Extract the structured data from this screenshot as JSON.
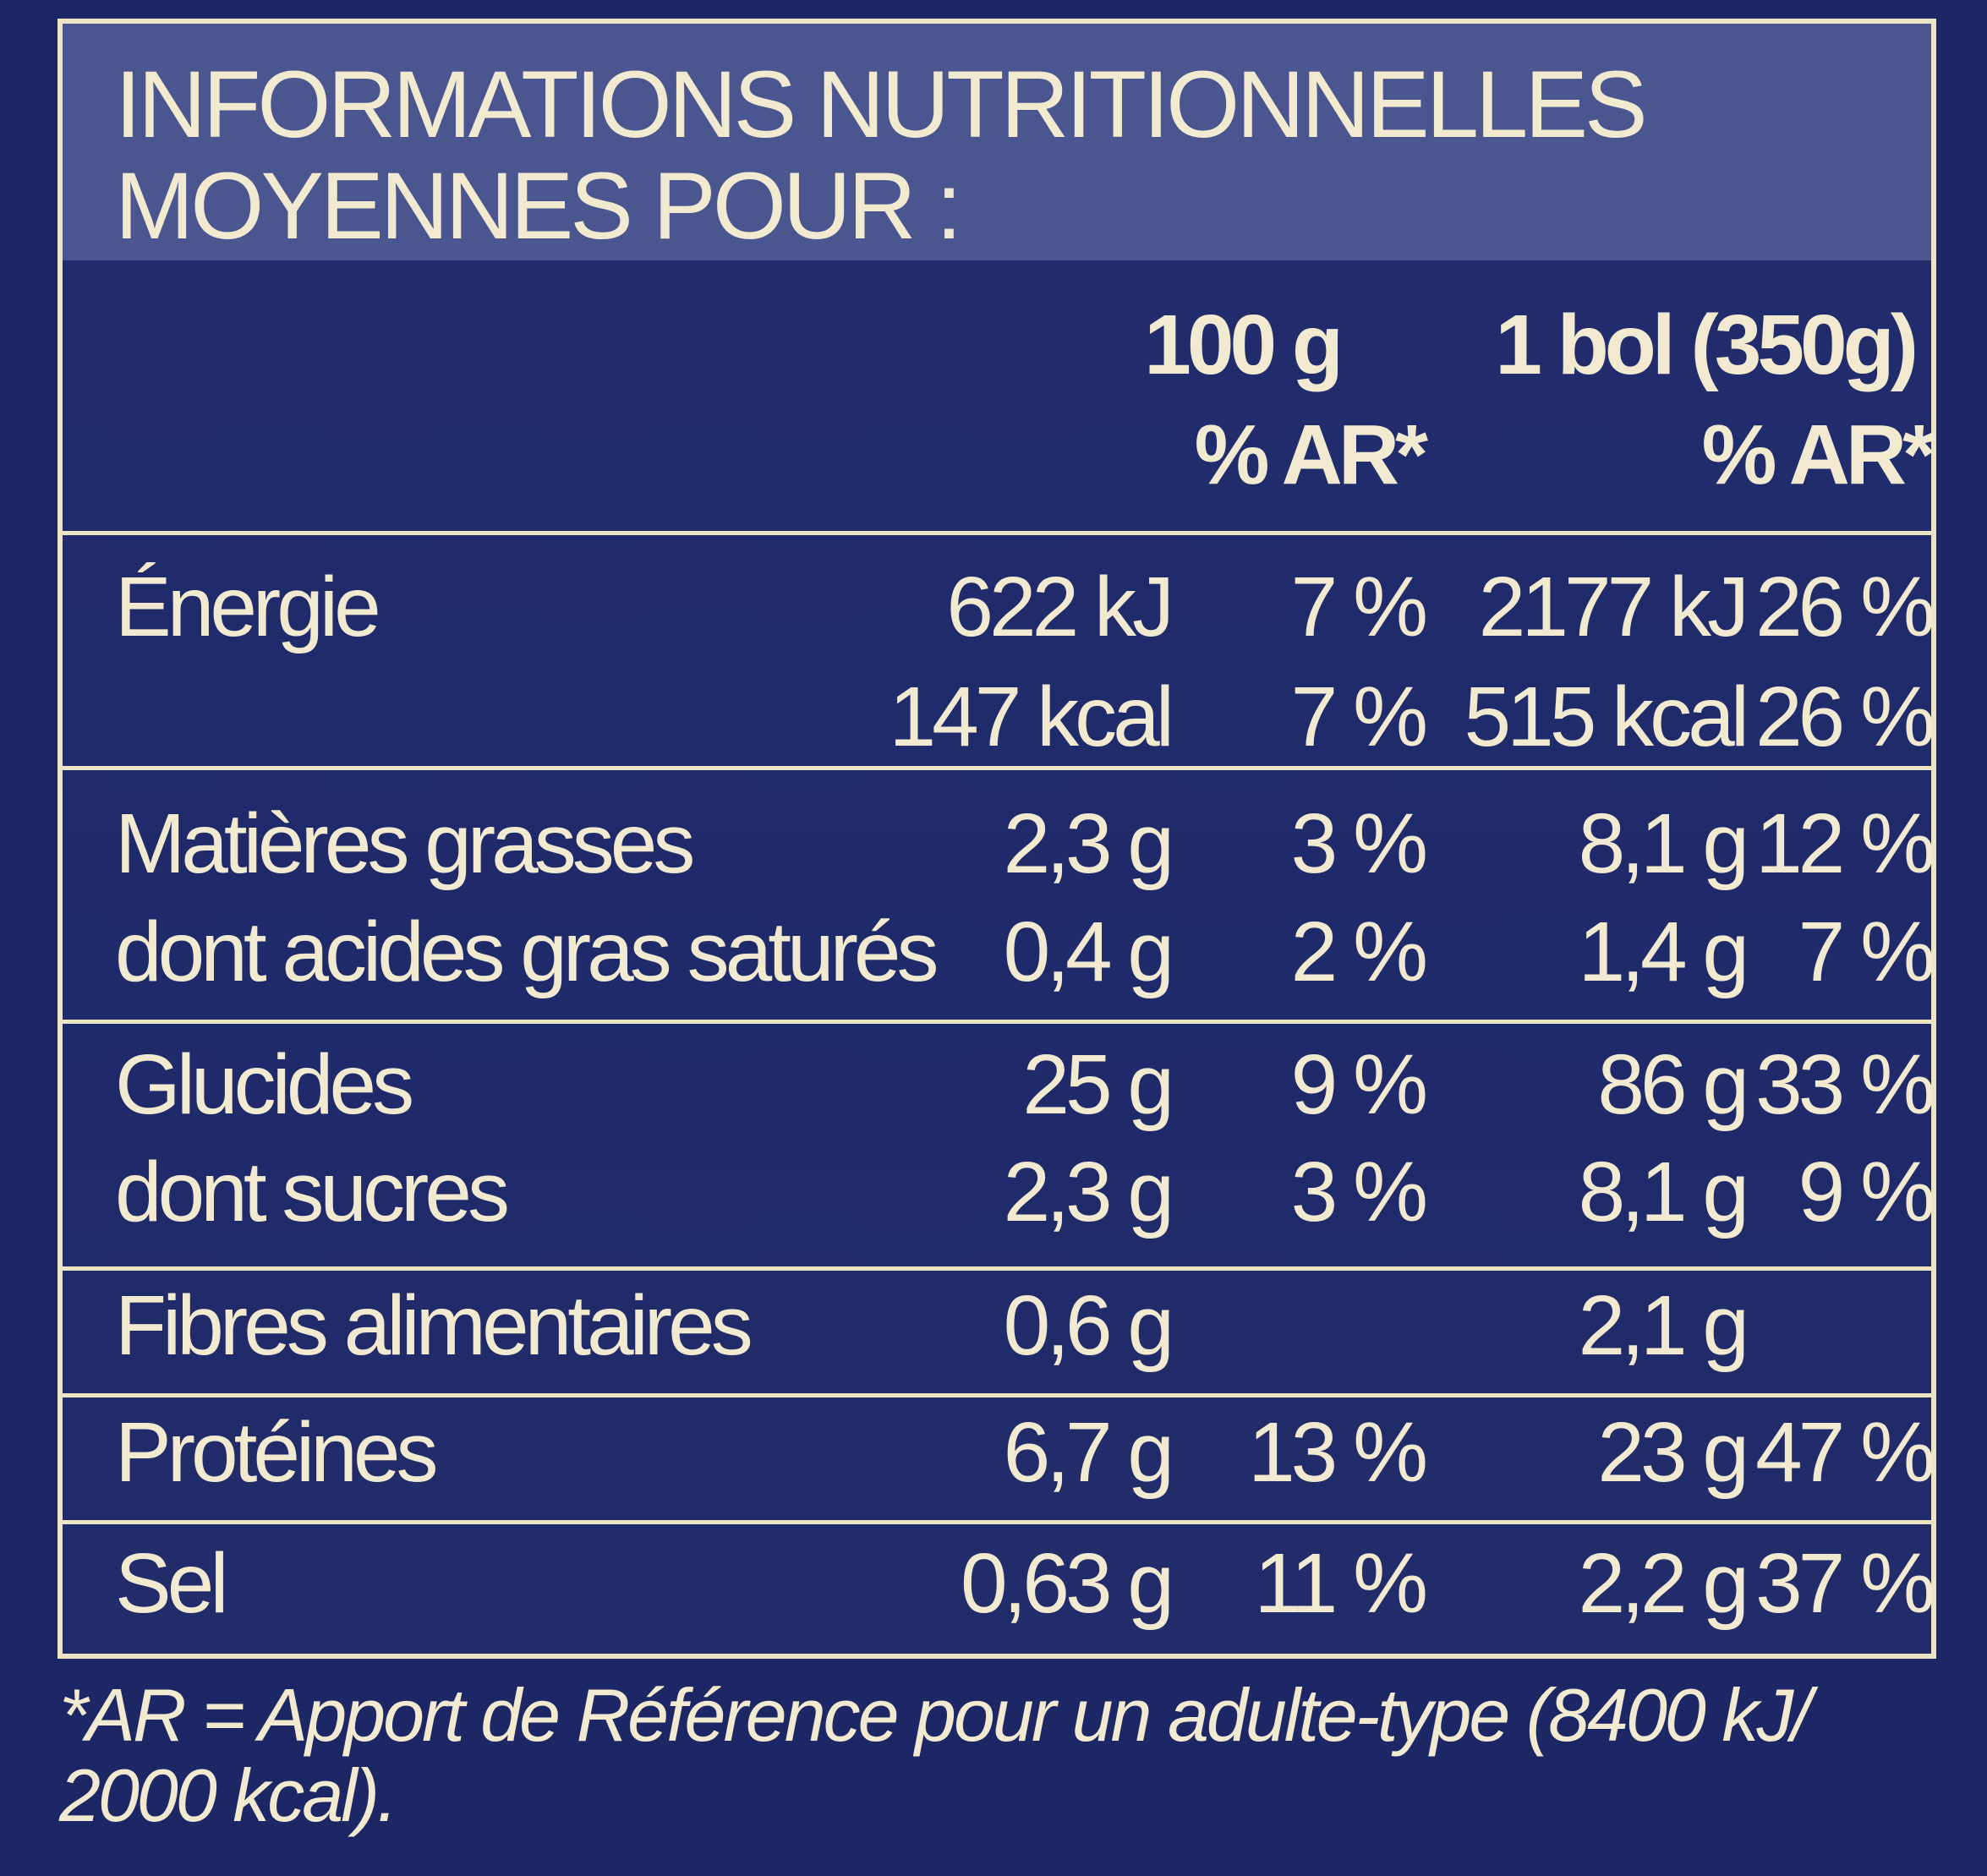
{
  "title": {
    "line1": "INFORMATIONS NUTRITIONNELLES",
    "line2": "MOYENNES POUR :"
  },
  "columns": {
    "per100": "100 g",
    "perServing": "1 bol (350g)",
    "ar1": "% AR*",
    "ar2": "% AR*"
  },
  "rows": [
    {
      "label": "Énergie",
      "v1": "622 kJ",
      "p1": "7 %",
      "v2": "2177 kJ",
      "p2": "26 %"
    },
    {
      "label": "",
      "v1": "147 kcal",
      "p1": "7 %",
      "v2": "515 kcal",
      "p2": "26 %"
    },
    {
      "label": "Matières grasses",
      "v1": "2,3 g",
      "p1": "3 %",
      "v2": "8,1 g",
      "p2": "12 %"
    },
    {
      "label": "dont acides gras saturés",
      "v1": "0,4 g",
      "p1": "2 %",
      "v2": "1,4 g",
      "p2": "7 %"
    },
    {
      "label": "Glucides",
      "v1": "25 g",
      "p1": "9 %",
      "v2": "86 g",
      "p2": "33 %"
    },
    {
      "label": "dont sucres",
      "v1": "2,3 g",
      "p1": "3 %",
      "v2": "8,1 g",
      "p2": "9 %"
    },
    {
      "label": "Fibres alimentaires",
      "v1": "0,6 g",
      "p1": "",
      "v2": "2,1 g",
      "p2": ""
    },
    {
      "label": "Protéines",
      "v1": "6,7 g",
      "p1": "13 %",
      "v2": "23 g",
      "p2": "47 %"
    },
    {
      "label": "Sel",
      "v1": "0,63 g",
      "p1": "11 %",
      "v2": "2,2 g",
      "p2": "37 %"
    }
  ],
  "footnote": {
    "line1": "*AR = Apport de Référence pour un adulte-type (8400 kJ/",
    "line2": "2000 kcal)."
  },
  "colors": {
    "background": "#1d2766",
    "header_band": "#4b5690",
    "text": "#f1ead0"
  }
}
